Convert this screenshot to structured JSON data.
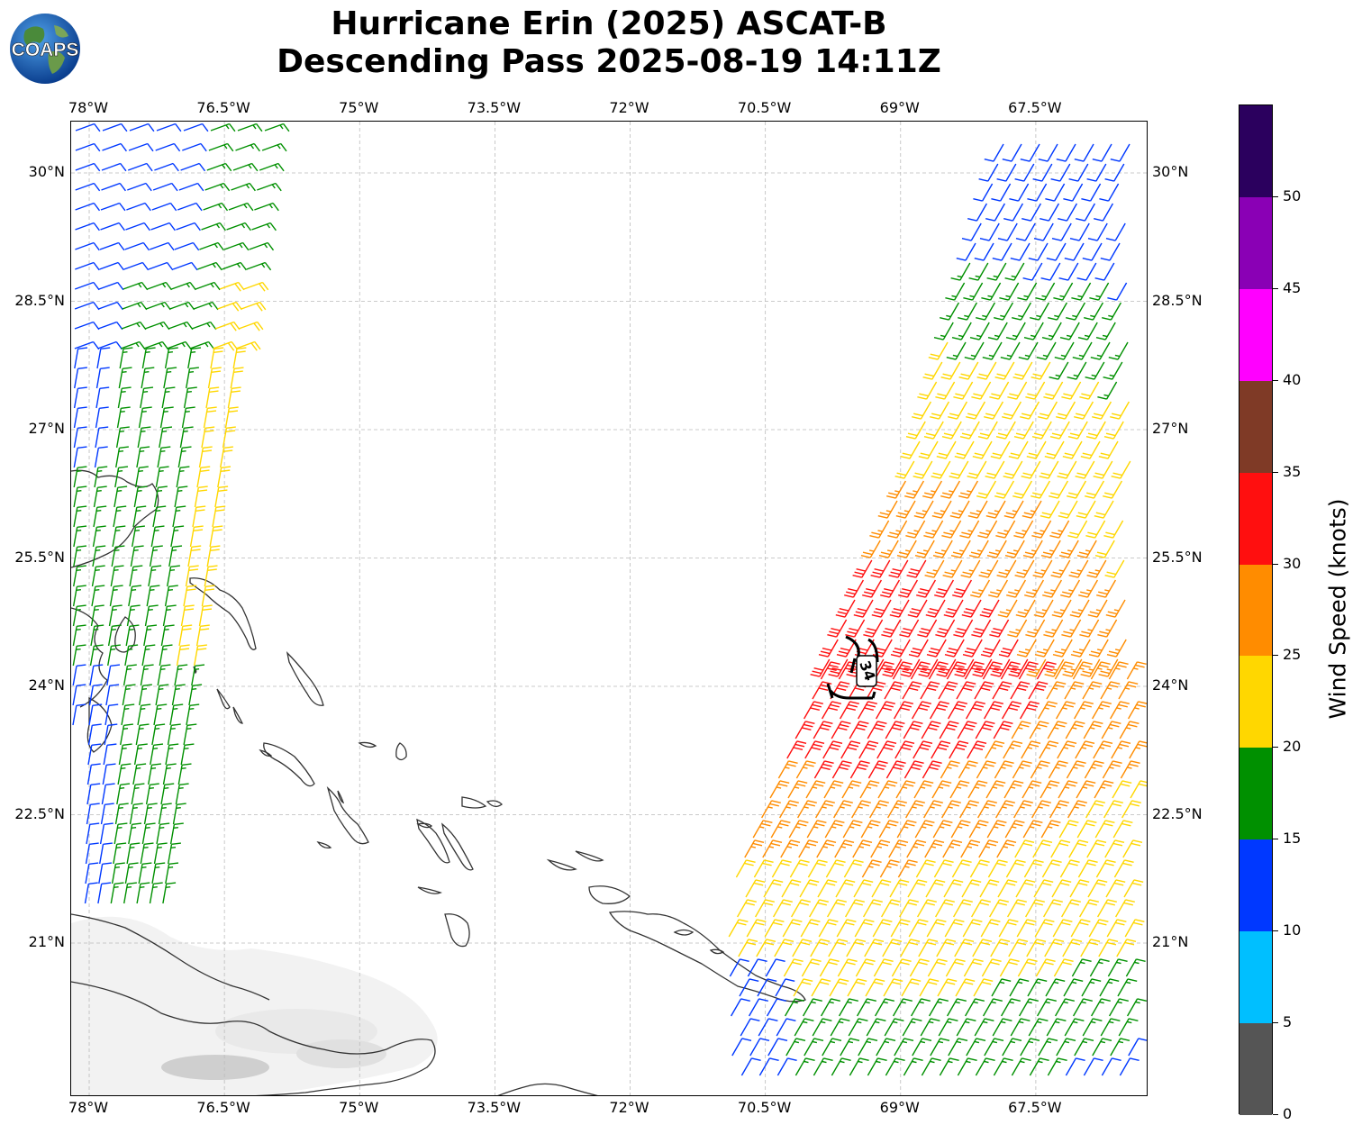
{
  "title_line1": "Hurricane Erin (2025) ASCAT-B",
  "title_line2": "Descending Pass 2025-08-19 14:11Z",
  "logo_text": "COAPS",
  "lon_labels": [
    "78°W",
    "76.5°W",
    "75°W",
    "73.5°W",
    "72°W",
    "70.5°W",
    "69°W",
    "67.5°W"
  ],
  "lat_labels": [
    "30°N",
    "28.5°N",
    "27°N",
    "25.5°N",
    "24°N",
    "22.5°N",
    "21°N"
  ],
  "map_extent": {
    "lon_min": -78.2,
    "lon_max": -66.25,
    "lat_min": 19.2,
    "lat_max": 30.6
  },
  "wind_radius_label": "34",
  "colorbar": {
    "label": "Wind Speed (knots)",
    "ticks": [
      "0",
      "5",
      "10",
      "15",
      "20",
      "25",
      "30",
      "35",
      "40",
      "45",
      "50"
    ],
    "bins": [
      {
        "min": 0,
        "max": 5,
        "color": "#555555"
      },
      {
        "min": 5,
        "max": 10,
        "color": "#00bfff"
      },
      {
        "min": 10,
        "max": 15,
        "color": "#0038ff"
      },
      {
        "min": 15,
        "max": 20,
        "color": "#009000"
      },
      {
        "min": 20,
        "max": 25,
        "color": "#ffd700"
      },
      {
        "min": 25,
        "max": 30,
        "color": "#ff8c00"
      },
      {
        "min": 30,
        "max": 35,
        "color": "#ff0f0f"
      },
      {
        "min": 35,
        "max": 40,
        "color": "#7f3a26"
      },
      {
        "min": 40,
        "max": 45,
        "color": "#ff00ff"
      },
      {
        "min": 45,
        "max": 50,
        "color": "#8a00b5"
      },
      {
        "min": 50,
        "max": 55,
        "color": "#2b005e"
      }
    ]
  }
}
